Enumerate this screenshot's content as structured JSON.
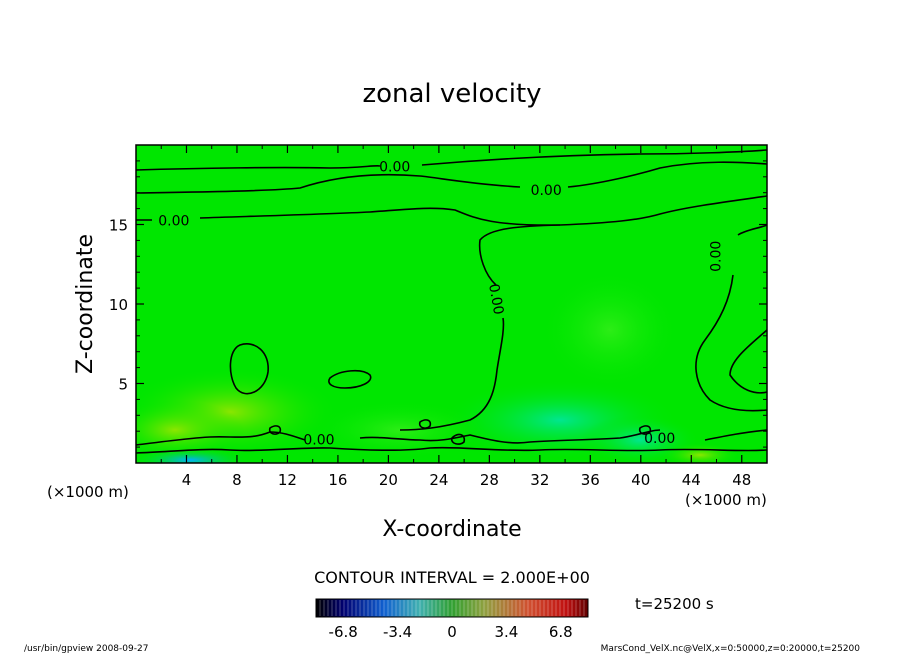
{
  "chart_data": {
    "type": "heatmap",
    "title": "zonal velocity",
    "xlabel": "X-coordinate",
    "ylabel": "Z-coordinate",
    "x_unit_left": "(×1000 m)",
    "x_unit_right": "(×1000 m)",
    "xlim": [
      0,
      50
    ],
    "ylim": [
      0,
      20
    ],
    "x_ticks": [
      4,
      8,
      12,
      16,
      20,
      24,
      28,
      32,
      36,
      40,
      44,
      48
    ],
    "y_ticks": [
      5,
      10,
      15
    ],
    "contour_labels": [
      {
        "text": "0.00",
        "x": 20.5,
        "y": 18.6
      },
      {
        "text": "0.00",
        "x": 32.5,
        "y": 17.1
      },
      {
        "text": "0.00",
        "x": 3.0,
        "y": 15.2
      },
      {
        "text": "0.00",
        "x": 28.5,
        "y": 10.3
      },
      {
        "text": "0.00",
        "x": 46.0,
        "y": 13.0
      },
      {
        "text": "0.00",
        "x": 14.5,
        "y": 1.4
      },
      {
        "text": "0.00",
        "x": 41.5,
        "y": 1.5
      }
    ],
    "contour_interval": "CONTOUR INTERVAL = 2.000E+00",
    "colorbar": {
      "min": -8.5,
      "max": 8.5,
      "ticks": [
        "-6.8",
        "-3.4",
        "0",
        "3.4",
        "6.8"
      ],
      "tick_values": [
        -6.8,
        -3.4,
        0,
        3.4,
        6.8
      ]
    },
    "time_label": "t=25200 s"
  },
  "footer": {
    "left": "/usr/bin/gpview  2008-09-27",
    "right": "MarsCond_VelX.nc@VelX,x=0:50000,z=0:20000,t=25200"
  },
  "colors": {
    "field_green": "#00e600",
    "contour": "#000000"
  }
}
